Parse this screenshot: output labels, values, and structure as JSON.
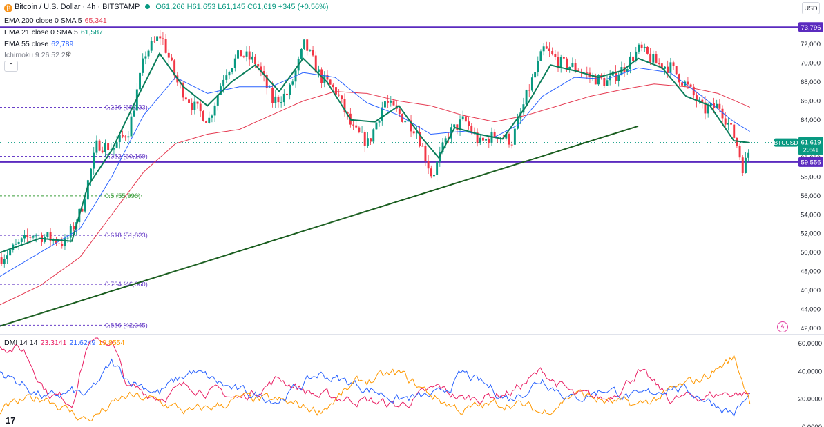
{
  "header": {
    "symbol_title": "Bitcoin / U.S. Dollar · 4h · BITSTAMP",
    "open": "O61,266",
    "high": "H61,653",
    "low": "L61,145",
    "close": "C61,619",
    "change": "+345 (+0.56%)",
    "currency": "USD",
    "logo_icon": "bitcoin-icon"
  },
  "indicators": [
    {
      "label": "EMA 200 close 0 SMA 5",
      "value": "65,341",
      "color": "#e53950"
    },
    {
      "label": "EMA 21 close 0 SMA 5",
      "value": "61,587",
      "color": "#089981"
    },
    {
      "label": "EMA 55 close",
      "value": "62,789",
      "color": "#2962ff"
    },
    {
      "label": "Ichimoku 9 26 52 26",
      "value": "",
      "color": "#787b86"
    }
  ],
  "dmi_legend": {
    "label": "DMI 14 14",
    "values": [
      {
        "value": "23.3141",
        "color": "#e91e63"
      },
      {
        "value": "21.6249",
        "color": "#2962ff"
      },
      {
        "value": "19.8554",
        "color": "#ff9800"
      }
    ]
  },
  "chart_data": [
    {
      "type": "candlestick",
      "symbol": "BTCUSD",
      "last_price": "61,619",
      "countdown": "29:41",
      "ylim": [
        41500,
        75200
      ],
      "y_ticks": [
        "72,000",
        "70,000",
        "68,000",
        "66,000",
        "64,000",
        "62,000",
        "60,000",
        "58,000",
        "56,000",
        "54,000",
        "52,000",
        "50,000",
        "48,000",
        "46,000",
        "44,000",
        "42,000"
      ],
      "horizontal_lines": [
        {
          "price": 73796,
          "label": "73,796",
          "color": "#5b2bbf"
        },
        {
          "price": 59556,
          "label": "59,556",
          "color": "#5b2bbf"
        }
      ],
      "fib_levels": [
        {
          "ratio": "0.236",
          "label": "0.236 (65,333)",
          "price": 65333,
          "color": "#6a40c8"
        },
        {
          "ratio": "0.382",
          "label": "0.382 (60,169)",
          "price": 60169,
          "color": "#6a40c8"
        },
        {
          "ratio": "0.5",
          "label": "0.5 (55,996)",
          "price": 55996,
          "color": "#3a9e3a"
        },
        {
          "ratio": "0.618",
          "label": "0.618 (51,823)",
          "price": 51823,
          "color": "#6a40c8"
        },
        {
          "ratio": "0.764",
          "label": "0.764 (46,660)",
          "price": 46660,
          "color": "#6a40c8"
        },
        {
          "ratio": "0.886",
          "label": "0.886 (42,345)",
          "price": 42345,
          "color": "#6a40c8"
        }
      ],
      "trendline": {
        "from": [
          0,
          42250
        ],
        "to": [
          0.8,
          63350
        ],
        "color": "#1b5e20"
      },
      "keypoints_close": [
        [
          0,
          49500
        ],
        [
          0.04,
          52000
        ],
        [
          0.08,
          51000
        ],
        [
          0.1,
          54500
        ],
        [
          0.12,
          61500
        ],
        [
          0.14,
          61000
        ],
        [
          0.16,
          63000
        ],
        [
          0.18,
          71000
        ],
        [
          0.2,
          73000
        ],
        [
          0.22,
          68000
        ],
        [
          0.24,
          65500
        ],
        [
          0.26,
          64000
        ],
        [
          0.28,
          69000
        ],
        [
          0.3,
          71000
        ],
        [
          0.32,
          70000
        ],
        [
          0.34,
          66000
        ],
        [
          0.36,
          66800
        ],
        [
          0.38,
          72000
        ],
        [
          0.4,
          68500
        ],
        [
          0.42,
          67000
        ],
        [
          0.44,
          63000
        ],
        [
          0.46,
          61500
        ],
        [
          0.48,
          66000
        ],
        [
          0.5,
          64500
        ],
        [
          0.52,
          63000
        ],
        [
          0.54,
          58000
        ],
        [
          0.56,
          62500
        ],
        [
          0.58,
          64000
        ],
        [
          0.6,
          61500
        ],
        [
          0.62,
          62500
        ],
        [
          0.64,
          61800
        ],
        [
          0.66,
          67000
        ],
        [
          0.68,
          71500
        ],
        [
          0.7,
          70000
        ],
        [
          0.72,
          69500
        ],
        [
          0.74,
          68500
        ],
        [
          0.76,
          68000
        ],
        [
          0.78,
          69500
        ],
        [
          0.8,
          71500
        ],
        [
          0.82,
          70000
        ],
        [
          0.84,
          69500
        ],
        [
          0.86,
          67500
        ],
        [
          0.88,
          65000
        ],
        [
          0.9,
          65500
        ],
        [
          0.92,
          62000
        ],
        [
          0.93,
          58800
        ],
        [
          0.94,
          61619
        ]
      ],
      "ema21_keypoints": [
        [
          0,
          50000
        ],
        [
          0.05,
          51500
        ],
        [
          0.09,
          51200
        ],
        [
          0.11,
          57000
        ],
        [
          0.14,
          60800
        ],
        [
          0.17,
          66000
        ],
        [
          0.2,
          71000
        ],
        [
          0.23,
          67500
        ],
        [
          0.26,
          65500
        ],
        [
          0.29,
          68000
        ],
        [
          0.32,
          69800
        ],
        [
          0.35,
          67000
        ],
        [
          0.38,
          70500
        ],
        [
          0.41,
          68000
        ],
        [
          0.44,
          64000
        ],
        [
          0.47,
          63800
        ],
        [
          0.5,
          65500
        ],
        [
          0.53,
          62000
        ],
        [
          0.55,
          60000
        ],
        [
          0.57,
          63200
        ],
        [
          0.6,
          62500
        ],
        [
          0.63,
          62000
        ],
        [
          0.66,
          65500
        ],
        [
          0.69,
          69800
        ],
        [
          0.72,
          69200
        ],
        [
          0.75,
          68500
        ],
        [
          0.78,
          69200
        ],
        [
          0.8,
          70500
        ],
        [
          0.83,
          69500
        ],
        [
          0.86,
          66500
        ],
        [
          0.89,
          65500
        ],
        [
          0.92,
          61800
        ],
        [
          0.94,
          61587
        ]
      ],
      "ema55_keypoints": [
        [
          0,
          47500
        ],
        [
          0.05,
          50000
        ],
        [
          0.1,
          52500
        ],
        [
          0.14,
          58000
        ],
        [
          0.18,
          64500
        ],
        [
          0.22,
          68500
        ],
        [
          0.26,
          66800
        ],
        [
          0.3,
          67500
        ],
        [
          0.34,
          67500
        ],
        [
          0.38,
          69000
        ],
        [
          0.42,
          68500
        ],
        [
          0.46,
          65800
        ],
        [
          0.5,
          64500
        ],
        [
          0.54,
          62500
        ],
        [
          0.58,
          62800
        ],
        [
          0.62,
          62200
        ],
        [
          0.65,
          63500
        ],
        [
          0.68,
          66500
        ],
        [
          0.72,
          68500
        ],
        [
          0.76,
          68300
        ],
        [
          0.8,
          69500
        ],
        [
          0.84,
          69000
        ],
        [
          0.88,
          66500
        ],
        [
          0.92,
          63800
        ],
        [
          0.94,
          62789
        ]
      ],
      "ema200_keypoints": [
        [
          0,
          44500
        ],
        [
          0.05,
          46500
        ],
        [
          0.1,
          49500
        ],
        [
          0.14,
          54000
        ],
        [
          0.18,
          58500
        ],
        [
          0.22,
          61500
        ],
        [
          0.26,
          62500
        ],
        [
          0.3,
          63000
        ],
        [
          0.34,
          64500
        ],
        [
          0.38,
          66000
        ],
        [
          0.42,
          67000
        ],
        [
          0.46,
          66800
        ],
        [
          0.5,
          66000
        ],
        [
          0.54,
          65500
        ],
        [
          0.58,
          64500
        ],
        [
          0.62,
          63800
        ],
        [
          0.66,
          64500
        ],
        [
          0.7,
          65500
        ],
        [
          0.74,
          66500
        ],
        [
          0.78,
          67200
        ],
        [
          0.82,
          67800
        ],
        [
          0.86,
          67500
        ],
        [
          0.9,
          66800
        ],
        [
          0.94,
          65341
        ]
      ]
    },
    {
      "type": "line",
      "title": "DMI 14 14",
      "ylim": [
        0,
        65
      ],
      "y_ticks": [
        "60.0000",
        "40.0000",
        "20.0000",
        "0.0000"
      ],
      "series": [
        {
          "values_keypoints": [
            [
              0,
              60
            ],
            [
              0.03,
              55
            ],
            [
              0.06,
              25
            ],
            [
              0.09,
              18
            ],
            [
              0.11,
              60
            ],
            [
              0.14,
              62
            ],
            [
              0.16,
              28
            ],
            [
              0.2,
              22
            ],
            [
              0.24,
              30
            ],
            [
              0.3,
              20
            ],
            [
              0.35,
              35
            ],
            [
              0.4,
              22
            ],
            [
              0.45,
              20
            ],
            [
              0.5,
              15
            ],
            [
              0.55,
              28
            ],
            [
              0.58,
              20
            ],
            [
              0.64,
              25
            ],
            [
              0.68,
              40
            ],
            [
              0.72,
              22
            ],
            [
              0.76,
              20
            ],
            [
              0.8,
              40
            ],
            [
              0.84,
              20
            ],
            [
              0.88,
              22
            ],
            [
              0.92,
              25
            ],
            [
              0.94,
              23.3
            ]
          ]
        },
        {
          "values_keypoints": [
            [
              0,
              40
            ],
            [
              0.03,
              30
            ],
            [
              0.06,
              20
            ],
            [
              0.09,
              25
            ],
            [
              0.11,
              22
            ],
            [
              0.14,
              45
            ],
            [
              0.16,
              35
            ],
            [
              0.2,
              25
            ],
            [
              0.24,
              40
            ],
            [
              0.3,
              25
            ],
            [
              0.35,
              20
            ],
            [
              0.4,
              38
            ],
            [
              0.45,
              30
            ],
            [
              0.5,
              20
            ],
            [
              0.55,
              22
            ],
            [
              0.58,
              38
            ],
            [
              0.64,
              20
            ],
            [
              0.68,
              35
            ],
            [
              0.72,
              20
            ],
            [
              0.76,
              28
            ],
            [
              0.8,
              20
            ],
            [
              0.84,
              30
            ],
            [
              0.88,
              22
            ],
            [
              0.92,
              10
            ],
            [
              0.94,
              21.6
            ]
          ]
        },
        {
          "values_keypoints": [
            [
              0,
              12
            ],
            [
              0.03,
              18
            ],
            [
              0.06,
              22
            ],
            [
              0.09,
              10
            ],
            [
              0.11,
              5
            ],
            [
              0.14,
              15
            ],
            [
              0.16,
              22
            ],
            [
              0.2,
              18
            ],
            [
              0.24,
              10
            ],
            [
              0.3,
              20
            ],
            [
              0.35,
              18
            ],
            [
              0.4,
              12
            ],
            [
              0.45,
              32
            ],
            [
              0.5,
              38
            ],
            [
              0.55,
              20
            ],
            [
              0.58,
              12
            ],
            [
              0.64,
              18
            ],
            [
              0.68,
              10
            ],
            [
              0.72,
              25
            ],
            [
              0.76,
              18
            ],
            [
              0.8,
              15
            ],
            [
              0.84,
              25
            ],
            [
              0.88,
              35
            ],
            [
              0.92,
              50
            ],
            [
              0.94,
              19.9
            ]
          ]
        }
      ]
    }
  ]
}
